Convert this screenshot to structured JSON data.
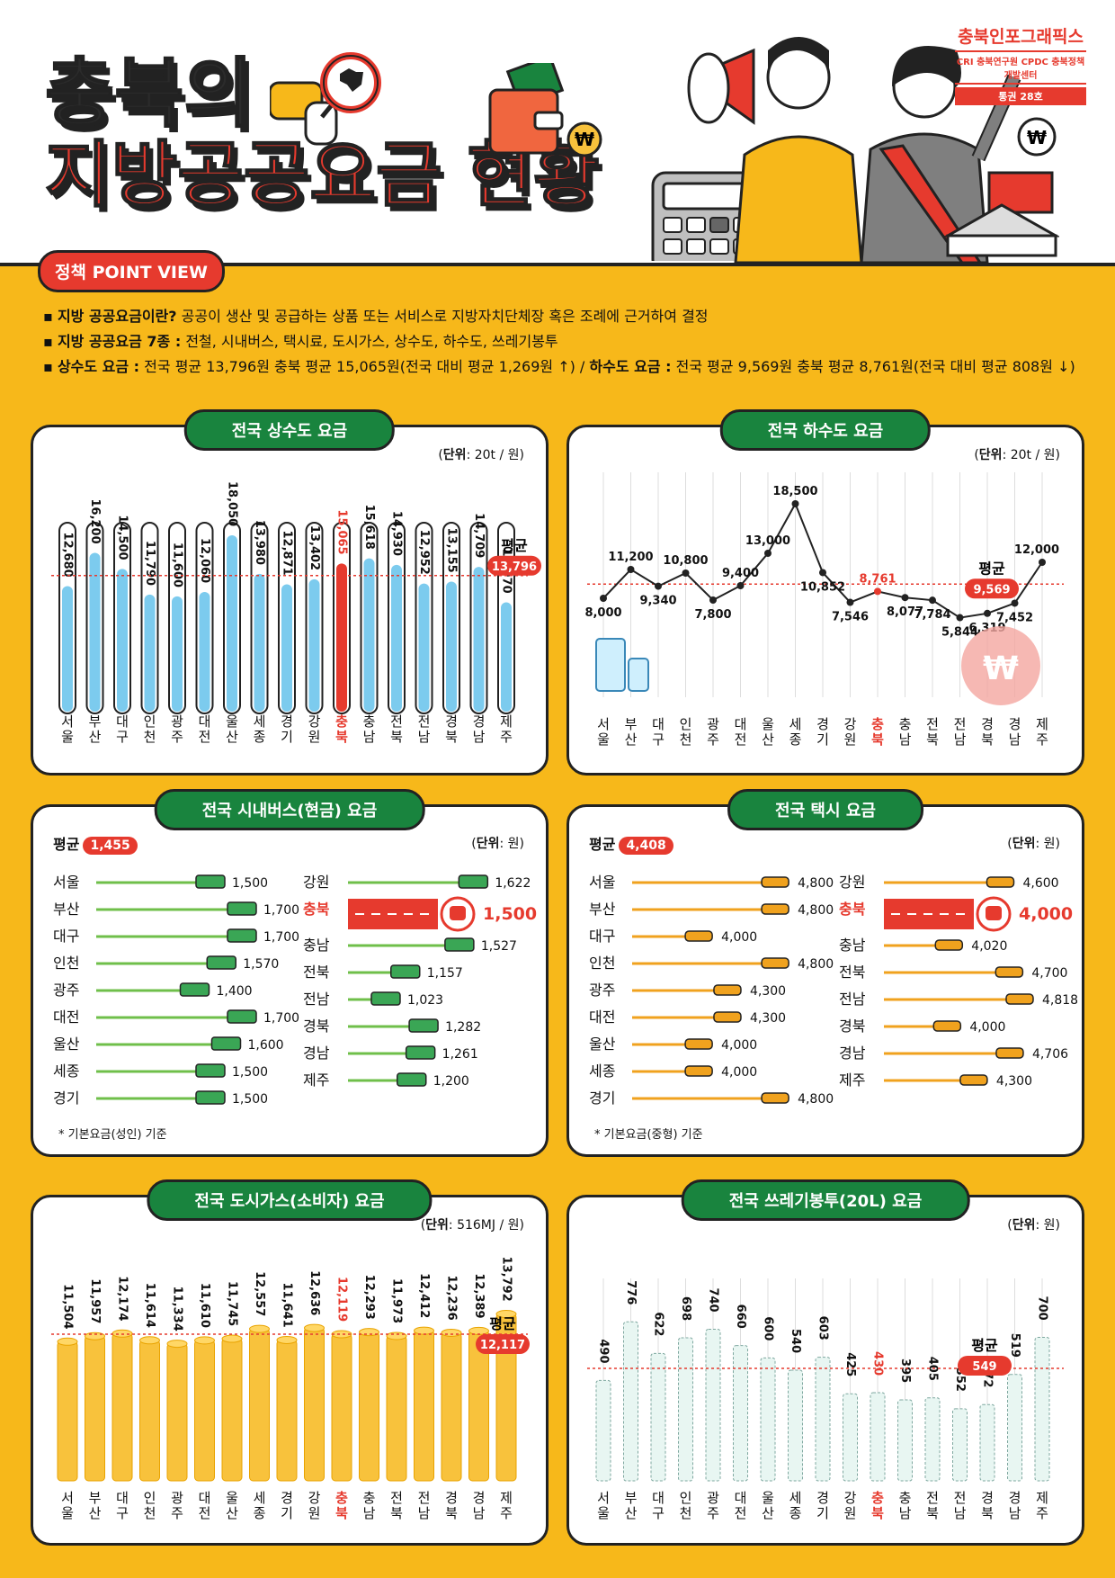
{
  "header": {
    "title_line1": "충북의",
    "title_line2": "지방공공요금 현황",
    "brand_name": "충북인포그래픽스",
    "brand_orgs": "CRI 충북연구원 CPDC 충북정책개발센터",
    "brand_issue": "통권 28호",
    "point_view": "정책 POINT VIEW"
  },
  "bullets": [
    {
      "head": "지방 공공요금이란?",
      "text": " 공공이 생산 및 공급하는 상품 또는 서비스로 지방자치단체장 혹은 조례에 근거하여 결정"
    },
    {
      "head": "지방 공공요금 7종 :",
      "text": " 전철, 시내버스, 택시료, 도시가스, 상수도, 하수도, 쓰레기봉투"
    },
    {
      "head": "상수도 요금 :",
      "text": " 전국 평균 13,796원 충북 평균 15,065원(전국 대비 평균 1,269원 ↑) / ",
      "head2": "하수도 요금 :",
      "text2": " 전국 평균 9,569원 충북 평균 8,761원(전국 대비 평균 808원 ↓)"
    }
  ],
  "colors": {
    "accent": "#e63a2e",
    "green": "#19843e",
    "water": "#7ccbee",
    "coin": "#f8c23c",
    "bg": "#f7b81a"
  },
  "regions": [
    "서울",
    "부산",
    "대구",
    "인천",
    "광주",
    "대전",
    "울산",
    "세종",
    "경기",
    "강원",
    "충북",
    "충남",
    "전북",
    "전남",
    "경북",
    "경남",
    "제주"
  ],
  "highlight": "충북",
  "avg_word": "평균",
  "chart_data": [
    {
      "id": "water",
      "type": "bar",
      "title": "전국 상수도 요금",
      "unit_label": "단위",
      "unit": ": 20t / 원",
      "categories": [
        "서울",
        "부산",
        "대구",
        "인천",
        "광주",
        "대전",
        "울산",
        "세종",
        "경기",
        "강원",
        "충북",
        "충남",
        "전북",
        "전남",
        "경북",
        "경남",
        "제주"
      ],
      "values": [
        12680,
        16200,
        14500,
        11790,
        11600,
        12060,
        18050,
        13980,
        12871,
        13402,
        15065,
        15618,
        14930,
        12952,
        13155,
        14709,
        10970
      ],
      "labels": [
        "12,680",
        "16,200",
        "14,500",
        "11,790",
        "11,600",
        "12,060",
        "18,050",
        "13,980",
        "12,871",
        "13,402",
        "15,065",
        "15,618",
        "14,930",
        "12,952",
        "13,155",
        "14,709",
        "10,970"
      ],
      "average": 13796,
      "average_label": "13,796",
      "ylim": [
        0,
        19000
      ]
    },
    {
      "id": "sewer",
      "type": "line",
      "title": "전국 하수도 요금",
      "unit_label": "단위",
      "unit": ": 20t / 원",
      "categories": [
        "서울",
        "부산",
        "대구",
        "인천",
        "광주",
        "대전",
        "울산",
        "세종",
        "경기",
        "강원",
        "충북",
        "충남",
        "전북",
        "전남",
        "경북",
        "경남",
        "제주"
      ],
      "values": [
        8000,
        11200,
        9340,
        10800,
        7800,
        9400,
        13000,
        18500,
        10852,
        7546,
        8761,
        8077,
        7784,
        5844,
        6319,
        7452,
        12000
      ],
      "labels": [
        "8,000",
        "11,200",
        "9,340",
        "10,800",
        "7,800",
        "9,400",
        "13,000",
        "18,500",
        "10,852",
        "7,546",
        "8,761",
        "8,077",
        "7,784",
        "5,844",
        "6,319",
        "7,452",
        "12,000"
      ],
      "average": 9569,
      "average_label": "9,569",
      "ylim": [
        3000,
        20000
      ]
    },
    {
      "id": "bus",
      "type": "bar",
      "title": "전국 시내버스(현금) 요금",
      "unit_label": "단위",
      "unit": ": 원",
      "average_label": "1,455",
      "note": "* 기본요금(성인) 기준",
      "left": [
        [
          "서울",
          1500,
          "1,500"
        ],
        [
          "부산",
          1700,
          "1,700"
        ],
        [
          "대구",
          1700,
          "1,700"
        ],
        [
          "인천",
          1570,
          "1,570"
        ],
        [
          "광주",
          1400,
          "1,400"
        ],
        [
          "대전",
          1700,
          "1,700"
        ],
        [
          "울산",
          1600,
          "1,600"
        ],
        [
          "세종",
          1500,
          "1,500"
        ],
        [
          "경기",
          1500,
          "1,500"
        ]
      ],
      "right": [
        [
          "강원",
          1622,
          "1,622"
        ],
        [
          "충북",
          1500,
          "1,500"
        ],
        [
          "충남",
          1527,
          "1,527"
        ],
        [
          "전북",
          1157,
          "1,157"
        ],
        [
          "전남",
          1023,
          "1,023"
        ],
        [
          "경북",
          1282,
          "1,282"
        ],
        [
          "경남",
          1261,
          "1,261"
        ],
        [
          "제주",
          1200,
          "1,200"
        ]
      ]
    },
    {
      "id": "taxi",
      "type": "bar",
      "title": "전국 택시 요금",
      "unit_label": "단위",
      "unit": ": 원",
      "average_label": "4,408",
      "note": "* 기본요금(중형) 기준",
      "left": [
        [
          "서울",
          4800,
          "4,800"
        ],
        [
          "부산",
          4800,
          "4,800"
        ],
        [
          "대구",
          4000,
          "4,000"
        ],
        [
          "인천",
          4800,
          "4,800"
        ],
        [
          "광주",
          4300,
          "4,300"
        ],
        [
          "대전",
          4300,
          "4,300"
        ],
        [
          "울산",
          4000,
          "4,000"
        ],
        [
          "세종",
          4000,
          "4,000"
        ],
        [
          "경기",
          4800,
          "4,800"
        ]
      ],
      "right": [
        [
          "강원",
          4600,
          "4,600"
        ],
        [
          "충북",
          4000,
          "4,000"
        ],
        [
          "충남",
          4020,
          "4,020"
        ],
        [
          "전북",
          4700,
          "4,700"
        ],
        [
          "전남",
          4818,
          "4,818"
        ],
        [
          "경북",
          4000,
          "4,000"
        ],
        [
          "경남",
          4706,
          "4,706"
        ],
        [
          "제주",
          4300,
          "4,300"
        ]
      ]
    },
    {
      "id": "gas",
      "type": "bar",
      "title": "전국 도시가스(소비자) 요금",
      "unit_label": "단위",
      "unit": ": 516MJ / 원",
      "categories": [
        "서울",
        "부산",
        "대구",
        "인천",
        "광주",
        "대전",
        "울산",
        "세종",
        "경기",
        "강원",
        "충북",
        "충남",
        "전북",
        "전남",
        "경북",
        "경남",
        "제주"
      ],
      "values": [
        11504,
        11957,
        12174,
        11614,
        11334,
        11610,
        11745,
        12557,
        11641,
        12636,
        12119,
        12293,
        11973,
        12412,
        12236,
        12389,
        13792
      ],
      "labels": [
        "11,504",
        "11,957",
        "12,174",
        "11,614",
        "11,334",
        "11,610",
        "11,745",
        "12,557",
        "11,641",
        "12,636",
        "12,119",
        "12,293",
        "11,973",
        "12,412",
        "12,236",
        "12,389",
        "13,792"
      ],
      "average": 12117,
      "average_label": "12,117"
    },
    {
      "id": "trash",
      "type": "bar",
      "title": "전국 쓰레기봉투(20L) 요금",
      "unit_label": "단위",
      "unit": ": 원",
      "categories": [
        "서울",
        "부산",
        "대구",
        "인천",
        "광주",
        "대전",
        "울산",
        "세종",
        "경기",
        "강원",
        "충북",
        "충남",
        "전북",
        "전남",
        "경북",
        "경남",
        "제주"
      ],
      "values": [
        490,
        776,
        622,
        698,
        740,
        660,
        600,
        540,
        603,
        425,
        430,
        395,
        405,
        352,
        372,
        519,
        700
      ],
      "labels": [
        "490",
        "776",
        "622",
        "698",
        "740",
        "660",
        "600",
        "540",
        "603",
        "425",
        "430",
        "395",
        "405",
        "352",
        "372",
        "519",
        "700"
      ],
      "average": 549,
      "average_label": "549"
    }
  ]
}
